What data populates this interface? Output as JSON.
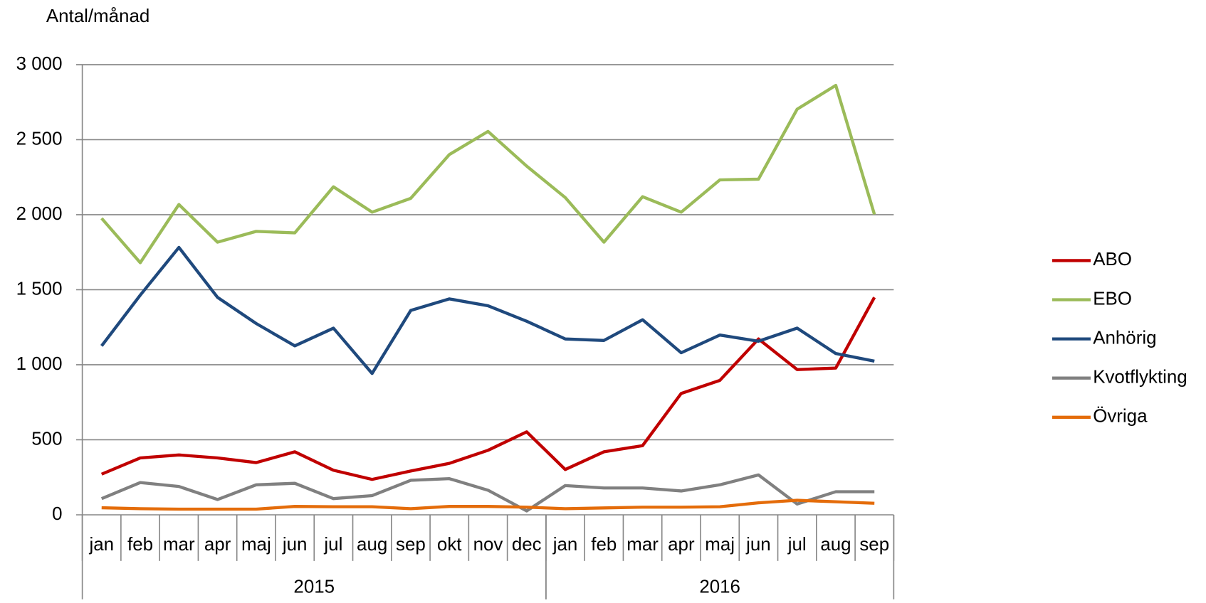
{
  "chart_data": {
    "type": "line",
    "y_label": "Antal/månad",
    "categories": [
      "jan",
      "feb",
      "mar",
      "apr",
      "maj",
      "jun",
      "jul",
      "aug",
      "sep",
      "okt",
      "nov",
      "dec",
      "jan",
      "feb",
      "mar",
      "apr",
      "maj",
      "jun",
      "jul",
      "aug",
      "sep"
    ],
    "groups": [
      {
        "label": "2015",
        "span": 12
      },
      {
        "label": "2016",
        "span": 9
      }
    ],
    "ylim": [
      0,
      3000
    ],
    "yticks": [
      0,
      500,
      {
        "value": 1000,
        "label": "1 000"
      },
      {
        "value": 1500,
        "label": "1 500"
      },
      {
        "value": 2000,
        "label": "2 000"
      },
      {
        "value": 2500,
        "label": "2 500"
      },
      {
        "value": 3000,
        "label": "3 000"
      }
    ],
    "grid": true,
    "legend": "right",
    "series": [
      {
        "name": "ABO",
        "color": "#c00000",
        "values": [
          271,
          379,
          399,
          379,
          348,
          420,
          297,
          236,
          292,
          343,
          430,
          553,
          302,
          420,
          461,
          809,
          896,
          1172,
          968,
          978,
          1449
        ]
      },
      {
        "name": "EBO",
        "color": "#9bbb59",
        "values": [
          1976,
          1680,
          2068,
          1817,
          1889,
          1879,
          2186,
          2017,
          2109,
          2401,
          2555,
          2324,
          2114,
          1817,
          2120,
          2017,
          2232,
          2237,
          2703,
          2862,
          2002
        ]
      },
      {
        "name": "Anhörig",
        "color": "#1f497d",
        "values": [
          1126,
          1464,
          1782,
          1449,
          1275,
          1126,
          1244,
          942,
          1362,
          1439,
          1393,
          1290,
          1172,
          1162,
          1300,
          1080,
          1198,
          1157,
          1244,
          1075,
          1024
        ]
      },
      {
        "name": "Kvotflykting",
        "color": "#808080",
        "values": [
          108,
          215,
          189,
          102,
          200,
          210,
          108,
          128,
          230,
          241,
          164,
          26,
          195,
          179,
          179,
          159,
          200,
          266,
          72,
          154,
          154
        ]
      },
      {
        "name": "Övriga",
        "color": "#e46c0a",
        "values": [
          47,
          41,
          38,
          38,
          38,
          56,
          54,
          54,
          41,
          56,
          56,
          51,
          41,
          46,
          51,
          51,
          54,
          80,
          97,
          87,
          77
        ]
      }
    ]
  }
}
